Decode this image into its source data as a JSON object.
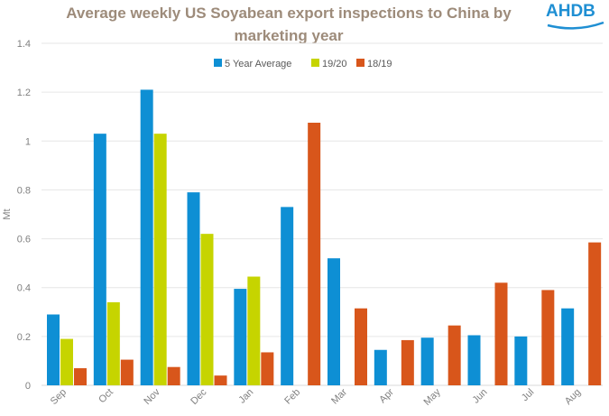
{
  "chart_data": {
    "type": "bar",
    "title_lines": [
      "Average weekly US Soyabean export inspections to China by",
      "marketing year"
    ],
    "ylabel": "Mt",
    "xlabel": "",
    "ylim": [
      0,
      1.4
    ],
    "yticks": [
      "0",
      "0.2",
      "0.4",
      "0.6",
      "0.8",
      "1",
      "1.2",
      "1.4"
    ],
    "ytick_values": [
      0,
      0.2,
      0.4,
      0.6,
      0.8,
      1.0,
      1.2,
      1.4
    ],
    "grid": true,
    "legend_position": "top",
    "categories": [
      "Sep",
      "Oct",
      "Nov",
      "Dec",
      "Jan",
      "Feb",
      "Mar",
      "Apr",
      "May",
      "Jun",
      "Jul",
      "Aug"
    ],
    "series": [
      {
        "name": "5 Year Average",
        "color": "#0e8fd4",
        "values": [
          0.29,
          1.03,
          1.21,
          0.79,
          0.395,
          0.73,
          0.52,
          0.145,
          0.195,
          0.205,
          0.2,
          0.315
        ]
      },
      {
        "name": "19/20",
        "color": "#c6d400",
        "values": [
          0.19,
          0.34,
          1.03,
          0.62,
          0.445,
          null,
          null,
          null,
          null,
          null,
          null,
          null
        ]
      },
      {
        "name": "18/19",
        "color": "#d8561b",
        "values": [
          0.07,
          0.105,
          0.075,
          0.04,
          0.135,
          1.075,
          0.315,
          0.185,
          0.245,
          0.42,
          0.39,
          0.585
        ]
      }
    ]
  },
  "logo": {
    "text": "AHDB"
  }
}
